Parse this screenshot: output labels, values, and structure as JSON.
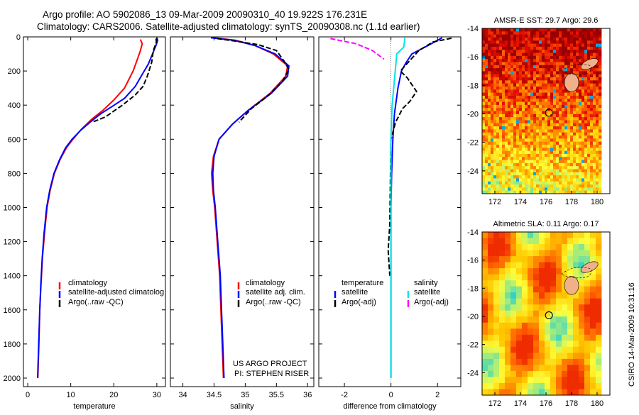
{
  "header": {
    "title_line1": "Argo profile: AO 5902086_13 09-Mar-2009 20090310_40 19.922S 176.231E",
    "title_line2": "Climatology: CARS2006. Satellite-adjusted climatology: synTS_20090308.nc (1.1d earlier)"
  },
  "colors": {
    "climatology": "#ff0000",
    "satellite": "#0000ff",
    "argo": "#000000",
    "satellite_diff": "#00e5e5",
    "argo_adj": "#ff00ff"
  },
  "chart_data": [
    {
      "type": "line",
      "panel": "temperature",
      "xlabel": "temperature",
      "xlim": [
        -1,
        32
      ],
      "ylim": [
        2050,
        0
      ],
      "xticks": [
        "0",
        "10",
        "20",
        "30"
      ],
      "yticks": [
        "0",
        "200",
        "400",
        "600",
        "800",
        "1000",
        "1200",
        "1400",
        "1600",
        "1800",
        "2000"
      ],
      "legend": [
        "climatology",
        "satellite-adjusted climatolog",
        "Argo(..raw -QC)"
      ],
      "series": [
        {
          "name": "climatology",
          "color": "#ff0000",
          "points": [
            [
              26.2,
              15
            ],
            [
              26.6,
              40
            ],
            [
              26.2,
              80
            ],
            [
              25.5,
              130
            ],
            [
              24.5,
              200
            ],
            [
              22.5,
              300
            ],
            [
              20.0,
              370
            ],
            [
              17.5,
              430
            ],
            [
              15.0,
              480
            ],
            [
              12.5,
              540
            ],
            [
              10.5,
              600
            ],
            [
              9.0,
              650
            ],
            [
              7.5,
              720
            ],
            [
              6.2,
              800
            ],
            [
              5.2,
              900
            ],
            [
              4.5,
              1000
            ],
            [
              3.9,
              1150
            ],
            [
              3.4,
              1300
            ],
            [
              3.1,
              1450
            ],
            [
              2.8,
              1600
            ],
            [
              2.6,
              1800
            ],
            [
              2.35,
              2000
            ]
          ]
        },
        {
          "name": "satellite-adjusted climatolog",
          "color": "#0000ff",
          "points": [
            [
              30.0,
              5
            ],
            [
              30.2,
              20
            ],
            [
              29.8,
              50
            ],
            [
              29.0,
              100
            ],
            [
              28.0,
              160
            ],
            [
              26.6,
              220
            ],
            [
              25.0,
              290
            ],
            [
              22.5,
              360
            ],
            [
              19.5,
              410
            ],
            [
              17.0,
              450
            ],
            [
              14.5,
              500
            ],
            [
              12.2,
              550
            ],
            [
              10.3,
              600
            ],
            [
              8.8,
              650
            ],
            [
              7.4,
              720
            ],
            [
              6.1,
              800
            ],
            [
              5.1,
              900
            ],
            [
              4.4,
              1000
            ],
            [
              3.8,
              1150
            ],
            [
              3.35,
              1300
            ],
            [
              3.05,
              1450
            ],
            [
              2.8,
              1600
            ],
            [
              2.55,
              1800
            ],
            [
              2.3,
              2000
            ]
          ]
        },
        {
          "name": "Argo(..raw -QC)",
          "color": "#000000",
          "points": [
            [
              29.8,
              10
            ],
            [
              29.9,
              30
            ],
            [
              29.2,
              80
            ],
            [
              28.8,
              150
            ],
            [
              27.8,
              230
            ],
            [
              26.8,
              290
            ],
            [
              25.0,
              340
            ],
            [
              22.0,
              400
            ],
            [
              18.0,
              470
            ],
            [
              15.0,
              500
            ]
          ]
        }
      ]
    },
    {
      "type": "line",
      "panel": "salinity",
      "xlabel": "salinity",
      "xlim": [
        33.8,
        36.1
      ],
      "ylim": [
        2050,
        0
      ],
      "xticks": [
        "34",
        "34.5",
        "35",
        "35.5",
        "36"
      ],
      "legend": [
        "climatology",
        "satellite adj. clim.",
        "Argo(..raw -QC)"
      ],
      "series": [
        {
          "name": "climatology",
          "color": "#ff0000",
          "points": [
            [
              34.5,
              5
            ],
            [
              34.85,
              20
            ],
            [
              35.15,
              50
            ],
            [
              35.45,
              100
            ],
            [
              35.68,
              170
            ],
            [
              35.65,
              230
            ],
            [
              35.4,
              330
            ],
            [
              35.05,
              430
            ],
            [
              34.8,
              510
            ],
            [
              34.58,
              600
            ],
            [
              34.49,
              700
            ],
            [
              34.46,
              800
            ],
            [
              34.48,
              900
            ],
            [
              34.51,
              1000
            ],
            [
              34.55,
              1200
            ],
            [
              34.59,
              1400
            ],
            [
              34.61,
              1600
            ],
            [
              34.63,
              1800
            ],
            [
              34.65,
              2000
            ]
          ]
        },
        {
          "name": "satellite adj. clim.",
          "color": "#0000ff",
          "points": [
            [
              34.45,
              5
            ],
            [
              34.82,
              20
            ],
            [
              35.15,
              50
            ],
            [
              35.48,
              100
            ],
            [
              35.7,
              170
            ],
            [
              35.68,
              230
            ],
            [
              35.42,
              330
            ],
            [
              35.05,
              430
            ],
            [
              34.8,
              510
            ],
            [
              34.58,
              600
            ],
            [
              34.5,
              700
            ],
            [
              34.48,
              800
            ],
            [
              34.49,
              900
            ],
            [
              34.52,
              1000
            ],
            [
              34.56,
              1200
            ],
            [
              34.6,
              1400
            ],
            [
              34.62,
              1600
            ],
            [
              34.64,
              1800
            ],
            [
              34.66,
              2000
            ]
          ]
        },
        {
          "name": "Argo(..raw -QC)",
          "color": "#000000",
          "points": [
            [
              34.55,
              10
            ],
            [
              34.75,
              20
            ],
            [
              35.2,
              45
            ],
            [
              35.5,
              80
            ],
            [
              35.62,
              140
            ],
            [
              35.7,
              190
            ],
            [
              35.6,
              260
            ],
            [
              35.35,
              350
            ],
            [
              35.1,
              420
            ],
            [
              34.9,
              500
            ]
          ]
        }
      ]
    },
    {
      "type": "line",
      "panel": "difference",
      "xlabel": "difference from climatology",
      "xlim": [
        -3.1,
        3.0
      ],
      "ylim": [
        2050,
        0
      ],
      "xticks": [
        "-2",
        "0",
        "2"
      ],
      "legend_left_title": "temperature",
      "legend_right_title": "salinity",
      "legend": [
        "satellite",
        "Argo(-adj)",
        "satellite",
        "Argo(-adj)"
      ],
      "series": [
        {
          "name": "satellite",
          "group": "temperature",
          "color": "#0000ff",
          "points": [
            [
              2.2,
              5
            ],
            [
              1.6,
              50
            ],
            [
              0.9,
              100
            ],
            [
              0.65,
              150
            ],
            [
              0.45,
              200
            ],
            [
              0.3,
              300
            ],
            [
              0.15,
              450
            ],
            [
              0.08,
              600
            ],
            [
              0.03,
              800
            ],
            [
              0.0,
              1000
            ],
            [
              0.0,
              1500
            ],
            [
              0.0,
              2000
            ]
          ]
        },
        {
          "name": "Argo(-adj)",
          "group": "temperature",
          "color": "#000000",
          "points": [
            [
              2.6,
              8
            ],
            [
              1.8,
              30
            ],
            [
              1.2,
              80
            ],
            [
              0.8,
              140
            ],
            [
              0.4,
              200
            ],
            [
              0.7,
              240
            ],
            [
              1.1,
              320
            ],
            [
              0.8,
              380
            ],
            [
              0.5,
              420
            ],
            [
              0.2,
              500
            ],
            [
              0.0,
              600
            ],
            [
              -0.05,
              1100
            ],
            [
              -0.12,
              1250
            ],
            [
              -0.05,
              1400
            ]
          ]
        },
        {
          "name": "satellite",
          "group": "salinity",
          "color": "#00e5e5",
          "points": [
            [
              0.6,
              5
            ],
            [
              0.55,
              60
            ],
            [
              0.25,
              100
            ],
            [
              0.15,
              250
            ],
            [
              0.05,
              400
            ],
            [
              0.0,
              600
            ],
            [
              0.0,
              2000
            ]
          ]
        },
        {
          "name": "Argo(-adj)",
          "group": "salinity",
          "color": "#ff00ff",
          "points": [
            [
              -2.6,
              10
            ],
            [
              -1.5,
              40
            ],
            [
              -0.8,
              80
            ],
            [
              -0.3,
              130
            ]
          ]
        }
      ]
    },
    {
      "type": "heatmap",
      "panel": "sst_map",
      "title": "AMSR-E SST: 29.7 Argo: 29.6",
      "xlim": [
        171,
        181
      ],
      "ylim": [
        -25.6,
        -14
      ],
      "xticks": [
        "172",
        "174",
        "176",
        "178",
        "180"
      ],
      "yticks": [
        "-14",
        "-16",
        "-18",
        "-20",
        "-22",
        "-24"
      ],
      "argo_position": [
        176.231,
        -19.922
      ]
    },
    {
      "type": "heatmap",
      "panel": "sla_map",
      "title": "Altimetric SLA: 0.11 Argo: 0.17",
      "xlim": [
        171,
        181
      ],
      "ylim": [
        -25.6,
        -14
      ],
      "xticks": [
        "172",
        "174",
        "176",
        "178",
        "180"
      ],
      "yticks": [
        "-14",
        "-16",
        "-18",
        "-20",
        "-22",
        "-24"
      ],
      "argo_position": [
        176.231,
        -19.922
      ]
    }
  ],
  "footer": {
    "credit_line1": "US ARGO PROJECT",
    "credit_line2": "PI: STEPHEN RISER",
    "side_stamp": "CSIRO 14-Mar-2009 10:31:16"
  }
}
